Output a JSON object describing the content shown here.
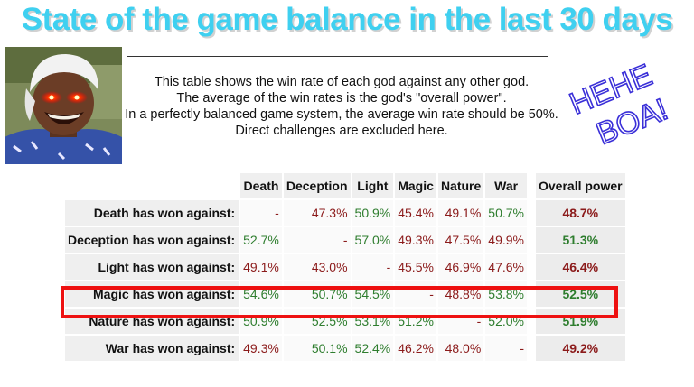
{
  "title": {
    "text": "State of the game balance in the last 30 days",
    "color": "#3fd0f0"
  },
  "description": [
    "This table shows the win rate of each god against any other god.",
    "The average of the win rates is the god's \"overall power\".",
    "In a perfectly balanced game system, the average win rate should be 50%.",
    "Direct challenges are excluded here."
  ],
  "stamp": {
    "line1": "HEHE",
    "line2": "BOA!",
    "color": "#3a2fd8"
  },
  "photo": {
    "icon": "laughing-man-laser-eyes-photo",
    "eye_color": "#ff2200"
  },
  "colors": {
    "win": "#2e7d2e",
    "loss": "#8b1a1a",
    "highlight": "#ee1111"
  },
  "table": {
    "columns": [
      "Death",
      "Deception",
      "Light",
      "Magic",
      "Nature",
      "War"
    ],
    "overall_header": "Overall power",
    "rows": [
      {
        "label": "Death has won against:",
        "values": [
          "-",
          "47.3%",
          "50.9%",
          "45.4%",
          "49.1%",
          "50.7%"
        ],
        "overall": "48.7%"
      },
      {
        "label": "Deception has won against:",
        "values": [
          "52.7%",
          "-",
          "57.0%",
          "49.3%",
          "47.5%",
          "49.9%"
        ],
        "overall": "51.3%"
      },
      {
        "label": "Light has won against:",
        "values": [
          "49.1%",
          "43.0%",
          "-",
          "45.5%",
          "46.9%",
          "47.6%"
        ],
        "overall": "46.4%"
      },
      {
        "label": "Magic has won against:",
        "values": [
          "54.6%",
          "50.7%",
          "54.5%",
          "-",
          "48.8%",
          "53.8%"
        ],
        "overall": "52.5%"
      },
      {
        "label": "Nature has won against:",
        "values": [
          "50.9%",
          "52.5%",
          "53.1%",
          "51.2%",
          "-",
          "52.0%"
        ],
        "overall": "51.9%"
      },
      {
        "label": "War has won against:",
        "values": [
          "49.3%",
          "50.1%",
          "52.4%",
          "46.2%",
          "48.0%",
          "-"
        ],
        "overall": "49.2%"
      }
    ],
    "highlighted_row": 3
  }
}
